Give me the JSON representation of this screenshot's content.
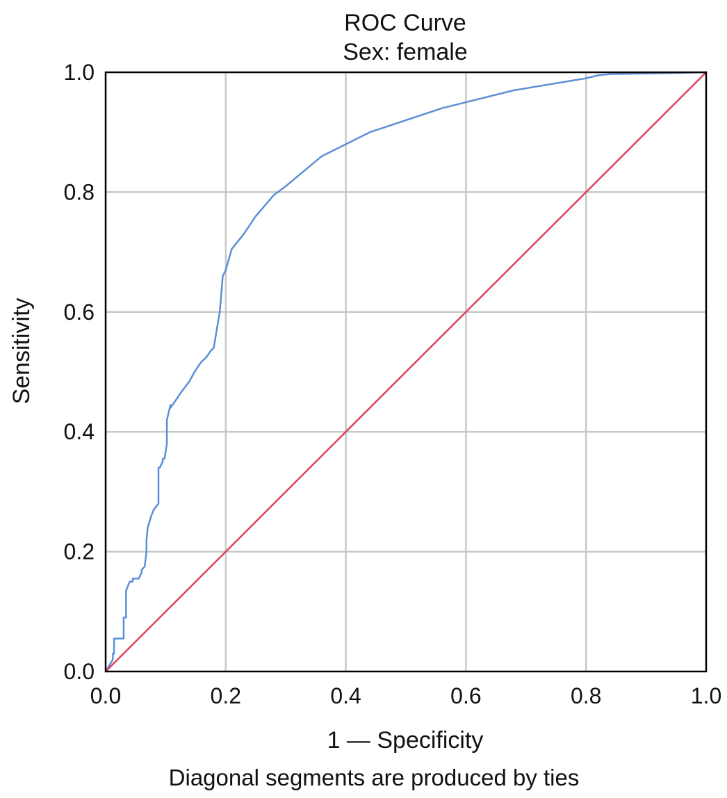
{
  "chart_data": {
    "type": "line",
    "title": "ROC Curve",
    "subtitle": "Sex: female",
    "xlabel": "1 — Specificity",
    "ylabel": "Sensitivity",
    "footnote": "Diagonal segments are produced by ties",
    "xlim": [
      0,
      1
    ],
    "ylim": [
      0,
      1
    ],
    "x_ticks": [
      0.0,
      0.2,
      0.4,
      0.6,
      0.8,
      1.0
    ],
    "y_ticks": [
      0.0,
      0.2,
      0.4,
      0.6,
      0.8,
      1.0
    ],
    "x_tick_labels": [
      "0.0",
      "0.2",
      "0.4",
      "0.6",
      "0.8",
      "1.0"
    ],
    "y_tick_labels": [
      "0.0",
      "0.2",
      "0.4",
      "0.6",
      "0.8",
      "1.0"
    ],
    "grid": true,
    "series": [
      {
        "color": "#5b8fd6",
        "x": [
          0.0,
          0.006,
          0.012,
          0.012,
          0.014,
          0.014,
          0.018,
          0.03,
          0.03,
          0.034,
          0.034,
          0.04,
          0.045,
          0.045,
          0.055,
          0.06,
          0.06,
          0.065,
          0.068,
          0.068,
          0.07,
          0.073,
          0.076,
          0.08,
          0.088,
          0.088,
          0.09,
          0.095,
          0.095,
          0.098,
          0.102,
          0.102,
          0.108,
          0.108,
          0.115,
          0.125,
          0.14,
          0.148,
          0.158,
          0.168,
          0.175,
          0.18,
          0.185,
          0.19,
          0.19,
          0.195,
          0.2,
          0.21,
          0.23,
          0.25,
          0.28,
          0.3,
          0.36,
          0.44,
          0.56,
          0.68,
          0.8,
          0.82,
          0.84,
          0.9,
          1.0
        ],
        "y": [
          0.0,
          0.01,
          0.02,
          0.03,
          0.03,
          0.055,
          0.055,
          0.055,
          0.09,
          0.09,
          0.135,
          0.15,
          0.15,
          0.155,
          0.155,
          0.165,
          0.17,
          0.175,
          0.2,
          0.22,
          0.24,
          0.25,
          0.26,
          0.27,
          0.28,
          0.34,
          0.34,
          0.35,
          0.355,
          0.355,
          0.38,
          0.42,
          0.445,
          0.44,
          0.45,
          0.465,
          0.485,
          0.5,
          0.515,
          0.525,
          0.535,
          0.54,
          0.57,
          0.6,
          0.6,
          0.66,
          0.67,
          0.705,
          0.73,
          0.76,
          0.795,
          0.81,
          0.86,
          0.9,
          0.94,
          0.97,
          0.99,
          0.995,
          0.997,
          0.998,
          1.0
        ]
      },
      {
        "color": "#e0405a",
        "x": [
          0.0,
          1.0
        ],
        "y": [
          0.0,
          1.0
        ]
      }
    ]
  }
}
